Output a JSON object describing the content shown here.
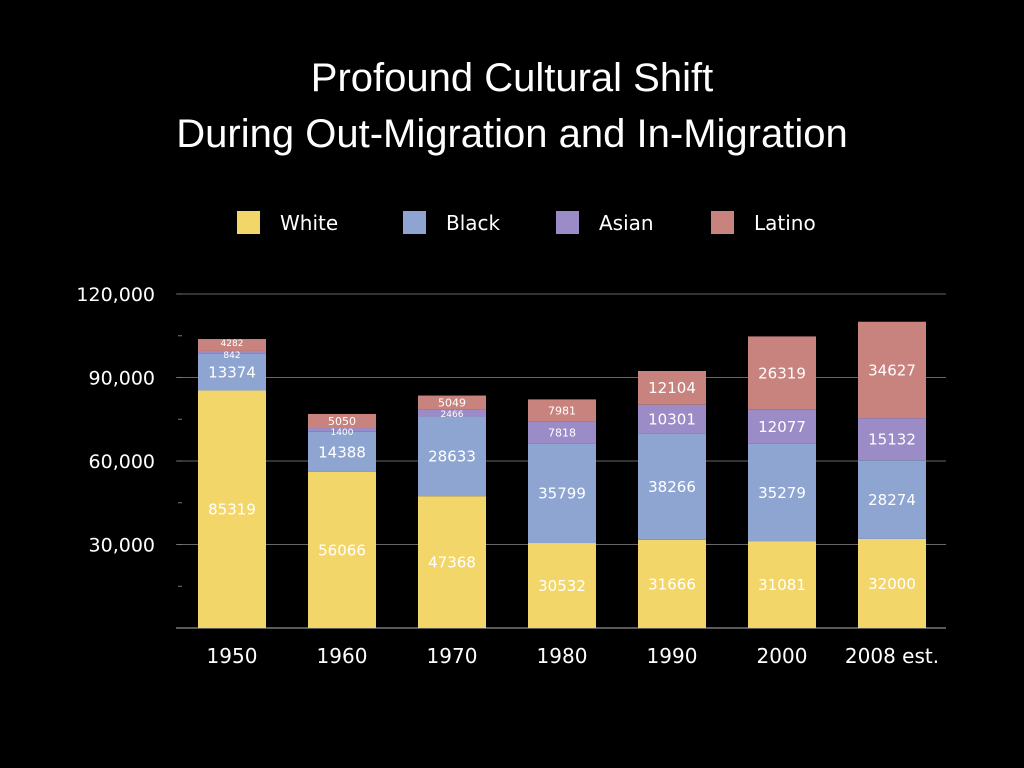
{
  "slide": {
    "title_line1": "Profound Cultural Shift",
    "title_line2": "During Out-Migration and In-Migration"
  },
  "chart_data": {
    "type": "bar",
    "stacked": true,
    "categories": [
      "1950",
      "1960",
      "1970",
      "1980",
      "1990",
      "2000",
      "2008 est."
    ],
    "series": [
      {
        "name": "White",
        "color": "#f3d66a",
        "values": [
          85319,
          56066,
          47368,
          30532,
          31666,
          31081,
          32000
        ]
      },
      {
        "name": "Black",
        "color": "#8ea5d2",
        "values": [
          13374,
          14388,
          28633,
          35799,
          38266,
          35279,
          28274
        ]
      },
      {
        "name": "Asian",
        "color": "#9b8bc6",
        "values": [
          842,
          1400,
          2466,
          7818,
          10301,
          12077,
          15132
        ]
      },
      {
        "name": "Latino",
        "color": "#c9837e",
        "values": [
          4282,
          5050,
          5049,
          7981,
          12104,
          26319,
          34627
        ]
      }
    ],
    "yticks": [
      "30,000",
      "60,000",
      "90,000",
      "120,000"
    ],
    "ylim": [
      0,
      120000
    ],
    "legend_position": "top",
    "grid": true,
    "data_labels": true
  }
}
